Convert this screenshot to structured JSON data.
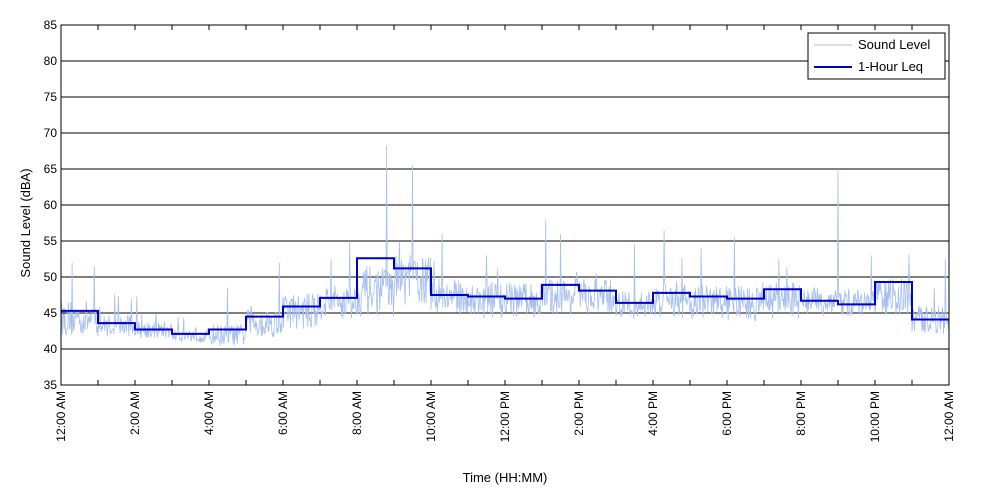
{
  "chart_data": {
    "type": "line",
    "xlabel": "Time (HH:MM)",
    "ylabel": "Sound Level (dBA)",
    "xlim": [
      0,
      24
    ],
    "ylim": [
      35,
      85
    ],
    "x_tick_labels": [
      "12:00 AM",
      "2:00 AM",
      "4:00 AM",
      "6:00 AM",
      "8:00 AM",
      "10:00 AM",
      "12:00 PM",
      "2:00 PM",
      "4:00 PM",
      "6:00 PM",
      "8:00 PM",
      "10:00 PM",
      "12:00 AM"
    ],
    "y_ticks": [
      35,
      40,
      45,
      50,
      55,
      60,
      65,
      70,
      75,
      80,
      85
    ],
    "grid": {
      "horizontal": true,
      "vertical": false
    },
    "legend_position": "top-right",
    "colors": {
      "sound_level": "#a6bfef",
      "leq": "#0000cc",
      "grid": "#000000"
    },
    "series": [
      {
        "name": "Sound Level",
        "style": "thin-line",
        "hourly_base": [
          43.5,
          42.8,
          42.3,
          41.6,
          41.5,
          43.0,
          44.5,
          45.8,
          47.0,
          48.5,
          46.5,
          46.0,
          46.0,
          46.5,
          46.5,
          45.5,
          46.0,
          45.8,
          45.5,
          46.0,
          46.0,
          45.8,
          46.5,
          43.5
        ],
        "hourly_spread": [
          2.5,
          1.5,
          1.2,
          1.0,
          1.5,
          2.0,
          2.5,
          2.5,
          3.5,
          3.5,
          2.5,
          2.5,
          2.5,
          2.5,
          2.5,
          2.0,
          2.5,
          2.5,
          2.5,
          2.5,
          2.0,
          2.0,
          2.5,
          2.0
        ],
        "peaks": [
          {
            "x": 0.3,
            "y": 52.0
          },
          {
            "x": 0.9,
            "y": 51.5
          },
          {
            "x": 1.9,
            "y": 47.0
          },
          {
            "x": 4.5,
            "y": 48.5
          },
          {
            "x": 5.9,
            "y": 52.0
          },
          {
            "x": 7.3,
            "y": 52.5
          },
          {
            "x": 7.8,
            "y": 55.0
          },
          {
            "x": 8.8,
            "y": 68.3
          },
          {
            "x": 9.5,
            "y": 65.5
          },
          {
            "x": 10.3,
            "y": 56.0
          },
          {
            "x": 11.5,
            "y": 53.0
          },
          {
            "x": 13.1,
            "y": 58.0
          },
          {
            "x": 13.5,
            "y": 56.0
          },
          {
            "x": 15.5,
            "y": 54.5
          },
          {
            "x": 16.3,
            "y": 56.5
          },
          {
            "x": 17.3,
            "y": 54.0
          },
          {
            "x": 18.2,
            "y": 55.5
          },
          {
            "x": 19.4,
            "y": 52.5
          },
          {
            "x": 21.0,
            "y": 65.0
          },
          {
            "x": 21.9,
            "y": 53.0
          },
          {
            "x": 23.6,
            "y": 48.5
          },
          {
            "x": 23.9,
            "y": 52.5
          }
        ]
      },
      {
        "name": "1-Hour Leq",
        "style": "step",
        "x": [
          0,
          1,
          2,
          3,
          4,
          5,
          6,
          7,
          8,
          9,
          10,
          11,
          12,
          13,
          14,
          15,
          16,
          17,
          18,
          19,
          20,
          21,
          22,
          23
        ],
        "values": [
          45.3,
          43.6,
          42.7,
          42.1,
          42.7,
          44.5,
          45.9,
          47.1,
          52.6,
          51.2,
          47.5,
          47.3,
          47.0,
          48.9,
          48.1,
          46.4,
          47.8,
          47.3,
          47.0,
          48.3,
          46.7,
          46.2,
          49.3,
          44.1
        ]
      }
    ]
  }
}
